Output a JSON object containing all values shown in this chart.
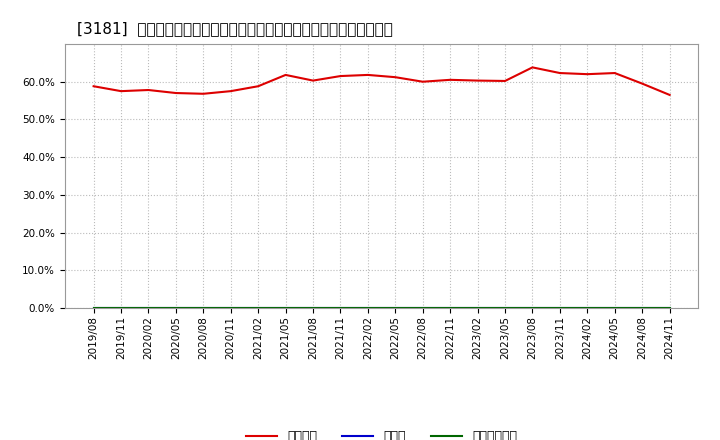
{
  "title": "[3181]  自己資本、のれん、繰延税金資産の総資産に対する比率の推移",
  "background_color": "#ffffff",
  "plot_bg_color": "#ffffff",
  "grid_color": "#bbbbbb",
  "x_labels": [
    "2019/08",
    "2019/11",
    "2020/02",
    "2020/05",
    "2020/08",
    "2020/11",
    "2021/02",
    "2021/05",
    "2021/08",
    "2021/11",
    "2022/02",
    "2022/05",
    "2022/08",
    "2022/11",
    "2023/02",
    "2023/05",
    "2023/08",
    "2023/11",
    "2024/02",
    "2024/05",
    "2024/08",
    "2024/11"
  ],
  "equity_ratio": [
    58.8,
    57.5,
    57.8,
    57.0,
    56.8,
    57.5,
    58.8,
    61.8,
    60.3,
    61.5,
    61.8,
    61.2,
    60.0,
    60.5,
    60.3,
    60.2,
    63.8,
    62.3,
    62.0,
    62.3,
    59.5,
    56.5
  ],
  "noren_ratio": [
    0,
    0,
    0,
    0,
    0,
    0,
    0,
    0,
    0,
    0,
    0,
    0,
    0,
    0,
    0,
    0,
    0,
    0,
    0,
    0,
    0,
    0
  ],
  "deferred_tax_ratio": [
    0,
    0,
    0,
    0,
    0,
    0,
    0,
    0,
    0,
    0,
    0,
    0,
    0,
    0,
    0,
    0,
    0,
    0,
    0,
    0,
    0,
    0
  ],
  "equity_color": "#dd0000",
  "noren_color": "#0000cc",
  "deferred_color": "#006600",
  "ylim": [
    0.0,
    70.0
  ],
  "yticks": [
    0.0,
    10.0,
    20.0,
    30.0,
    40.0,
    50.0,
    60.0
  ],
  "legend_labels": [
    "自己資本",
    "のれん",
    "繰延税金資産"
  ],
  "title_fontsize": 11,
  "axis_fontsize": 7.5,
  "legend_fontsize": 9
}
